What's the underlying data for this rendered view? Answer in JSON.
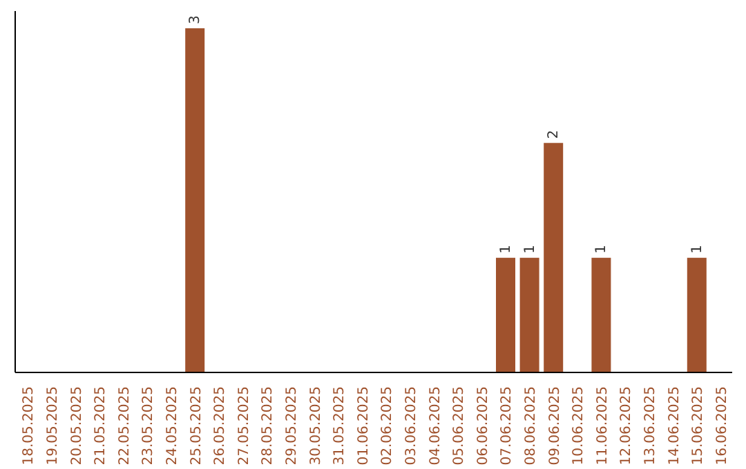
{
  "chart_data": {
    "type": "bar",
    "categories": [
      "18.05.2025",
      "19.05.2025",
      "20.05.2025",
      "21.05.2025",
      "22.05.2025",
      "23.05.2025",
      "24.05.2025",
      "25.05.2025",
      "26.05.2025",
      "27.05.2025",
      "28.05.2025",
      "29.05.2025",
      "30.05.2025",
      "31.05.2025",
      "01.06.2025",
      "02.06.2025",
      "03.06.2025",
      "04.06.2025",
      "05.06.2025",
      "06.06.2025",
      "07.06.2025",
      "08.06.2025",
      "09.06.2025",
      "10.06.2025",
      "11.06.2025",
      "12.06.2025",
      "13.06.2025",
      "14.06.2025",
      "15.06.2025",
      "16.06.2025"
    ],
    "values": [
      0,
      0,
      0,
      0,
      0,
      0,
      0,
      3,
      0,
      0,
      0,
      0,
      0,
      0,
      0,
      0,
      0,
      0,
      0,
      0,
      1,
      1,
      2,
      0,
      1,
      0,
      0,
      0,
      1,
      0
    ],
    "value_labels": [
      null,
      null,
      null,
      null,
      null,
      null,
      null,
      "3",
      null,
      null,
      null,
      null,
      null,
      null,
      null,
      null,
      null,
      null,
      null,
      null,
      "1",
      "1",
      "2",
      null,
      "1",
      null,
      null,
      null,
      "1",
      null
    ],
    "color": "#a0522d",
    "ylim": [
      0,
      3.15
    ],
    "tick_labels": "x"
  }
}
